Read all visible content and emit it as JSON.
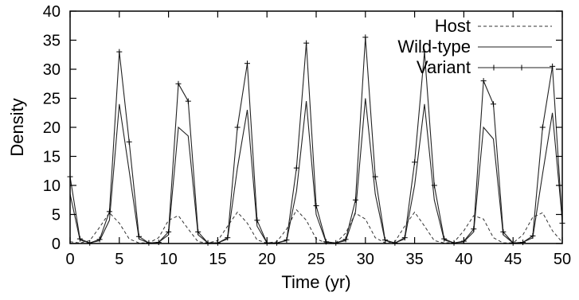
{
  "chart_data": {
    "type": "line",
    "title": "",
    "xlabel": "Time (yr)",
    "ylabel": "Density",
    "xlim": [
      0,
      50
    ],
    "ylim": [
      0,
      40
    ],
    "xticks": [
      0,
      5,
      10,
      15,
      20,
      25,
      30,
      35,
      40,
      45,
      50
    ],
    "yticks": [
      0,
      5,
      10,
      15,
      20,
      25,
      30,
      35,
      40
    ],
    "grid": false,
    "legend_position": "top-right",
    "series": [
      {
        "name": "Host",
        "style": "dashed",
        "x": [
          0,
          1,
          2,
          3,
          4,
          5,
          6,
          7,
          8,
          9,
          10,
          11,
          12,
          13,
          14,
          15,
          16,
          17,
          18,
          19,
          20,
          21,
          22,
          23,
          24,
          25,
          26,
          27,
          28,
          29,
          30,
          31,
          32,
          33,
          34,
          35,
          36,
          37,
          38,
          39,
          40,
          41,
          42,
          43,
          44,
          45,
          46,
          47,
          48,
          49,
          50
        ],
        "values": [
          0.3,
          0.1,
          0.5,
          2.8,
          5.3,
          3.5,
          0.8,
          0.1,
          0.1,
          1.0,
          4.0,
          4.8,
          2.5,
          0.3,
          0.1,
          0.5,
          3.0,
          5.4,
          3.5,
          0.6,
          0.1,
          0.3,
          2.5,
          5.8,
          4.0,
          0.8,
          0.1,
          0.1,
          1.8,
          5.2,
          4.2,
          1.0,
          0.1,
          0.3,
          3.0,
          5.4,
          3.0,
          0.5,
          0.1,
          0.2,
          2.2,
          4.8,
          4.2,
          1.0,
          0.1,
          0.1,
          1.5,
          4.5,
          5.3,
          2.2,
          0.2
        ]
      },
      {
        "name": "Wild-type",
        "style": "solid",
        "x": [
          0,
          1,
          2,
          3,
          4,
          5,
          6,
          7,
          8,
          9,
          10,
          11,
          12,
          13,
          14,
          15,
          16,
          17,
          18,
          19,
          20,
          21,
          22,
          23,
          24,
          25,
          26,
          27,
          28,
          29,
          30,
          31,
          32,
          33,
          34,
          35,
          36,
          37,
          38,
          39,
          40,
          41,
          42,
          43,
          44,
          45,
          46,
          47,
          48,
          49,
          50
        ],
        "values": [
          8.5,
          0.6,
          0.1,
          0.5,
          4.0,
          24.0,
          12.5,
          0.8,
          0.1,
          0.2,
          1.5,
          20.0,
          18.5,
          1.5,
          0.1,
          0.1,
          0.8,
          13.0,
          23.0,
          3.0,
          0.1,
          0.1,
          0.5,
          9.0,
          24.5,
          5.0,
          0.2,
          0.1,
          0.5,
          5.5,
          25.0,
          8.5,
          0.5,
          0.1,
          0.8,
          10.0,
          24.0,
          7.5,
          0.6,
          0.1,
          0.3,
          2.0,
          20.0,
          18.0,
          1.5,
          0.1,
          0.2,
          1.0,
          12.0,
          22.5,
          4.0
        ]
      },
      {
        "name": "Variant",
        "style": "solid-markers",
        "x": [
          0,
          1,
          2,
          3,
          4,
          5,
          6,
          7,
          8,
          9,
          10,
          11,
          12,
          13,
          14,
          15,
          16,
          17,
          18,
          19,
          20,
          21,
          22,
          23,
          24,
          25,
          26,
          27,
          28,
          29,
          30,
          31,
          32,
          33,
          34,
          35,
          36,
          37,
          38,
          39,
          40,
          41,
          42,
          43,
          44,
          45,
          46,
          47,
          48,
          49,
          50
        ],
        "values": [
          11.5,
          0.8,
          0.1,
          0.7,
          5.5,
          33.0,
          17.5,
          1.2,
          0.1,
          0.2,
          2.0,
          27.5,
          24.5,
          2.0,
          0.1,
          0.1,
          1.0,
          20.0,
          31.0,
          4.0,
          0.1,
          0.1,
          0.6,
          13.0,
          34.5,
          6.5,
          0.3,
          0.1,
          0.7,
          7.5,
          35.5,
          11.5,
          0.6,
          0.1,
          1.0,
          14.0,
          33.0,
          10.0,
          0.8,
          0.1,
          0.4,
          2.5,
          28.0,
          24.0,
          2.0,
          0.1,
          0.2,
          1.3,
          20.0,
          30.5,
          3.5
        ]
      }
    ]
  }
}
